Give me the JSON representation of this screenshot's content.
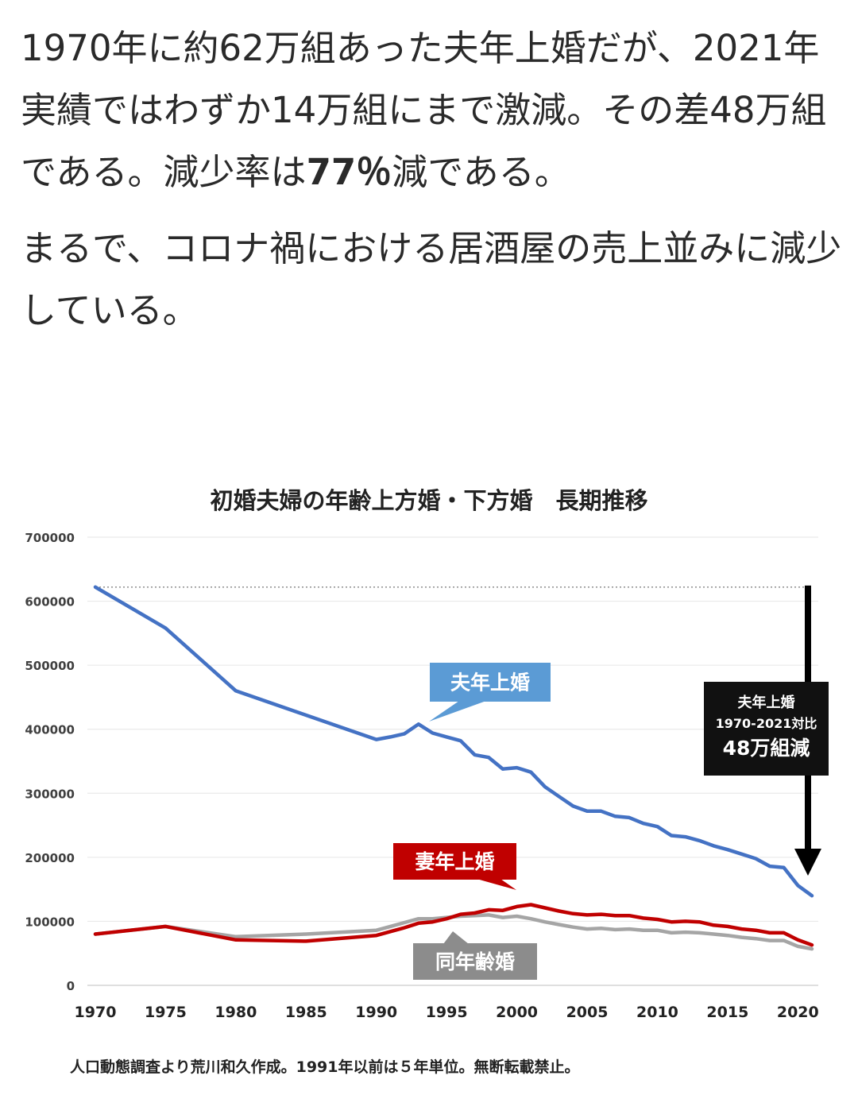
{
  "post": {
    "para1_a": "1970年に約62万組あった夫年上婚だが、2021年実績ではわずか14万組にまで激減。その差48万組である。減少率は",
    "para1_b": "77％",
    "para1_c": "減である。",
    "para2": "まるで、コロナ禍における居酒屋の売上並みに減少している。"
  },
  "chart_data": {
    "type": "line",
    "title": "初婚夫婦の年齢上方婚・下方婚　長期推移",
    "xlabel": "",
    "ylabel": "",
    "xlim": [
      1970,
      2021
    ],
    "ylim": [
      0,
      700000
    ],
    "yticks": [
      "0",
      "100000",
      "200000",
      "300000",
      "400000",
      "500000",
      "600000",
      "700000"
    ],
    "xticks": [
      "1970",
      "1975",
      "1980",
      "1985",
      "1990",
      "1995",
      "2000",
      "2005",
      "2010",
      "2015",
      "2020"
    ],
    "grid": true,
    "colors": {
      "husband_older": "#4472c4",
      "wife_older": "#c00000",
      "same_age": "#a5a5a5",
      "callout_dark": "#111111"
    },
    "series": [
      {
        "name": "夫年上婚",
        "x": [
          1970,
          1975,
          1980,
          1985,
          1990,
          1991,
          1992,
          1993,
          1994,
          1995,
          1996,
          1997,
          1998,
          1999,
          2000,
          2001,
          2002,
          2003,
          2004,
          2005,
          2006,
          2007,
          2008,
          2009,
          2010,
          2011,
          2012,
          2013,
          2014,
          2015,
          2016,
          2017,
          2018,
          2019,
          2020,
          2021
        ],
        "values": [
          622000,
          558000,
          460000,
          422000,
          384000,
          388000,
          393000,
          408000,
          394000,
          388000,
          382000,
          360000,
          356000,
          338000,
          340000,
          333000,
          310000,
          295000,
          280000,
          272000,
          272000,
          264000,
          262000,
          253000,
          248000,
          234000,
          232000,
          226000,
          218000,
          212000,
          205000,
          198000,
          186000,
          184000,
          156000,
          140000
        ]
      },
      {
        "name": "同年齢婚",
        "x": [
          1970,
          1975,
          1980,
          1985,
          1990,
          1991,
          1992,
          1993,
          1994,
          1995,
          1996,
          1997,
          1998,
          1999,
          2000,
          2001,
          2002,
          2003,
          2004,
          2005,
          2006,
          2007,
          2008,
          2009,
          2010,
          2011,
          2012,
          2013,
          2014,
          2015,
          2016,
          2017,
          2018,
          2019,
          2020,
          2021
        ],
        "values": [
          80000,
          92000,
          76000,
          80000,
          86000,
          92000,
          98000,
          104000,
          104000,
          106000,
          108000,
          109000,
          110000,
          106000,
          108000,
          104000,
          99000,
          95000,
          91000,
          88000,
          89000,
          87000,
          88000,
          86000,
          86000,
          82000,
          83000,
          82000,
          80000,
          78000,
          75000,
          73000,
          70000,
          70000,
          61000,
          57000
        ]
      },
      {
        "name": "妻年上婚",
        "x": [
          1970,
          1975,
          1980,
          1985,
          1990,
          1991,
          1992,
          1993,
          1994,
          1995,
          1996,
          1997,
          1998,
          1999,
          2000,
          2001,
          2002,
          2003,
          2004,
          2005,
          2006,
          2007,
          2008,
          2009,
          2010,
          2011,
          2012,
          2013,
          2014,
          2015,
          2016,
          2017,
          2018,
          2019,
          2020,
          2021
        ],
        "values": [
          80000,
          92000,
          71000,
          69000,
          78000,
          84000,
          90000,
          97000,
          99000,
          104000,
          111000,
          113000,
          118000,
          117000,
          123000,
          126000,
          121000,
          116000,
          112000,
          110000,
          111000,
          109000,
          109000,
          105000,
          103000,
          99000,
          100000,
          99000,
          94000,
          92000,
          88000,
          86000,
          82000,
          82000,
          71000,
          63000
        ]
      }
    ],
    "annotations": {
      "husband_label": "夫年上婚",
      "wife_label": "妻年上婚",
      "same_label": "同年齢婚",
      "callout_line1": "夫年上婚",
      "callout_line2": "1970-2021対比",
      "callout_line3": "48万組減"
    },
    "caption": "人口動態調査より荒川和久作成。1991年以前は５年単位。無断転載禁止。"
  }
}
